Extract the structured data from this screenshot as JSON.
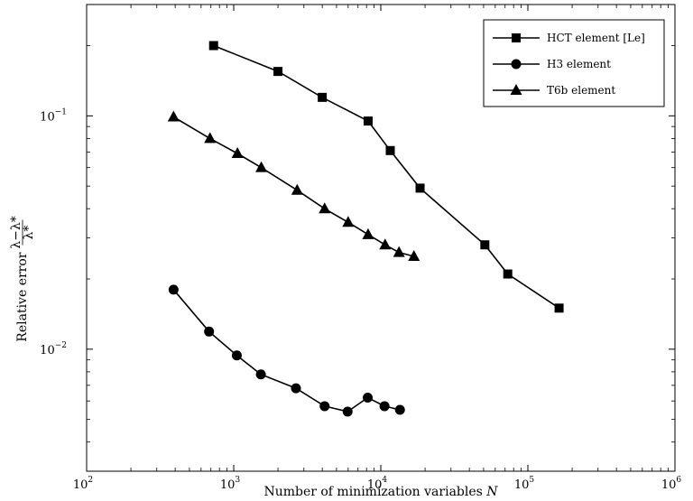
{
  "chart_data": {
    "type": "line",
    "title": "",
    "xlabel": "Number of minimization variables N",
    "ylabel": "Relative error (λ−λ*)/λ*",
    "ylabel_text": "Relative error",
    "ylabel_num": "λ−λ*",
    "ylabel_den": "λ*",
    "xscale": "log",
    "yscale": "log",
    "xlim": [
      100,
      1000000
    ],
    "ylim": [
      0.003,
      0.3
    ],
    "x_ticks": [
      {
        "base": "10",
        "exp": "2"
      },
      {
        "base": "10",
        "exp": "3"
      },
      {
        "base": "10",
        "exp": "4"
      },
      {
        "base": "10",
        "exp": "5"
      },
      {
        "base": "10",
        "exp": "6"
      }
    ],
    "y_ticks": [
      {
        "base": "10",
        "exp": "−2"
      },
      {
        "base": "10",
        "exp": "−1"
      }
    ],
    "grid": false,
    "legend_position": "top-right",
    "series": [
      {
        "name": "HCT element [Le]",
        "marker": "square",
        "x": [
          730,
          2000,
          4000,
          8200,
          11600,
          18500,
          51000,
          73000,
          163000
        ],
        "y": [
          0.2,
          0.155,
          0.12,
          0.095,
          0.071,
          0.049,
          0.028,
          0.021,
          0.015
        ]
      },
      {
        "name": "H3 element",
        "marker": "circle",
        "x": [
          390,
          680,
          1050,
          1530,
          2650,
          4150,
          5950,
          8150,
          10600,
          13500
        ],
        "y": [
          0.018,
          0.0119,
          0.0094,
          0.0078,
          0.0068,
          0.0057,
          0.0054,
          0.0062,
          0.0057,
          0.0055
        ]
      },
      {
        "name": "T6b element",
        "marker": "triangle",
        "x": [
          390,
          690,
          1060,
          1540,
          2700,
          4150,
          6000,
          8200,
          10700,
          13300,
          16800
        ],
        "y": [
          0.099,
          0.08,
          0.069,
          0.06,
          0.048,
          0.04,
          0.035,
          0.031,
          0.028,
          0.026,
          0.025
        ]
      }
    ]
  }
}
